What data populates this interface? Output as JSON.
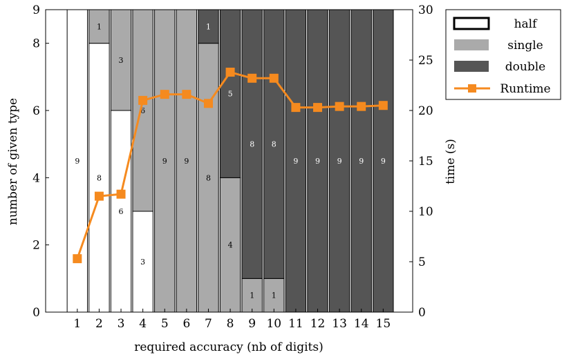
{
  "chart_data": {
    "type": "bar",
    "stacked": true,
    "categories": [
      "1",
      "2",
      "3",
      "4",
      "5",
      "6",
      "7",
      "8",
      "9",
      "10",
      "11",
      "12",
      "13",
      "14",
      "15"
    ],
    "xlabel": "required accuracy (nb of digits)",
    "ylabel": "number of given type",
    "y2label": "time (s)",
    "ylim": [
      0,
      9
    ],
    "y2lim": [
      0,
      30
    ],
    "yticks": [
      "0",
      "2",
      "4",
      "6",
      "8",
      "9"
    ],
    "y2ticks": [
      "0",
      "5",
      "10",
      "15",
      "20",
      "25",
      "30"
    ],
    "series": [
      {
        "name": "half",
        "color": "#ffffff",
        "values": [
          9,
          8,
          6,
          3,
          0,
          0,
          0,
          0,
          0,
          0,
          0,
          0,
          0,
          0,
          0
        ]
      },
      {
        "name": "single",
        "color": "#aaaaaa",
        "values": [
          0,
          1,
          3,
          6,
          9,
          9,
          8,
          4,
          1,
          1,
          0,
          0,
          0,
          0,
          0
        ]
      },
      {
        "name": "double",
        "color": "#555555",
        "values": [
          0,
          0,
          0,
          0,
          0,
          0,
          1,
          5,
          8,
          8,
          9,
          9,
          9,
          9,
          9
        ]
      }
    ],
    "line_series": {
      "name": "Runtime",
      "color": "#f58a1f",
      "axis": "right",
      "values": [
        5.3,
        11.5,
        11.7,
        21.0,
        21.6,
        21.6,
        20.7,
        23.8,
        23.2,
        23.2,
        20.3,
        20.3,
        20.4,
        20.4,
        20.5
      ]
    },
    "legend": {
      "position": "top-right"
    },
    "grid": false
  }
}
